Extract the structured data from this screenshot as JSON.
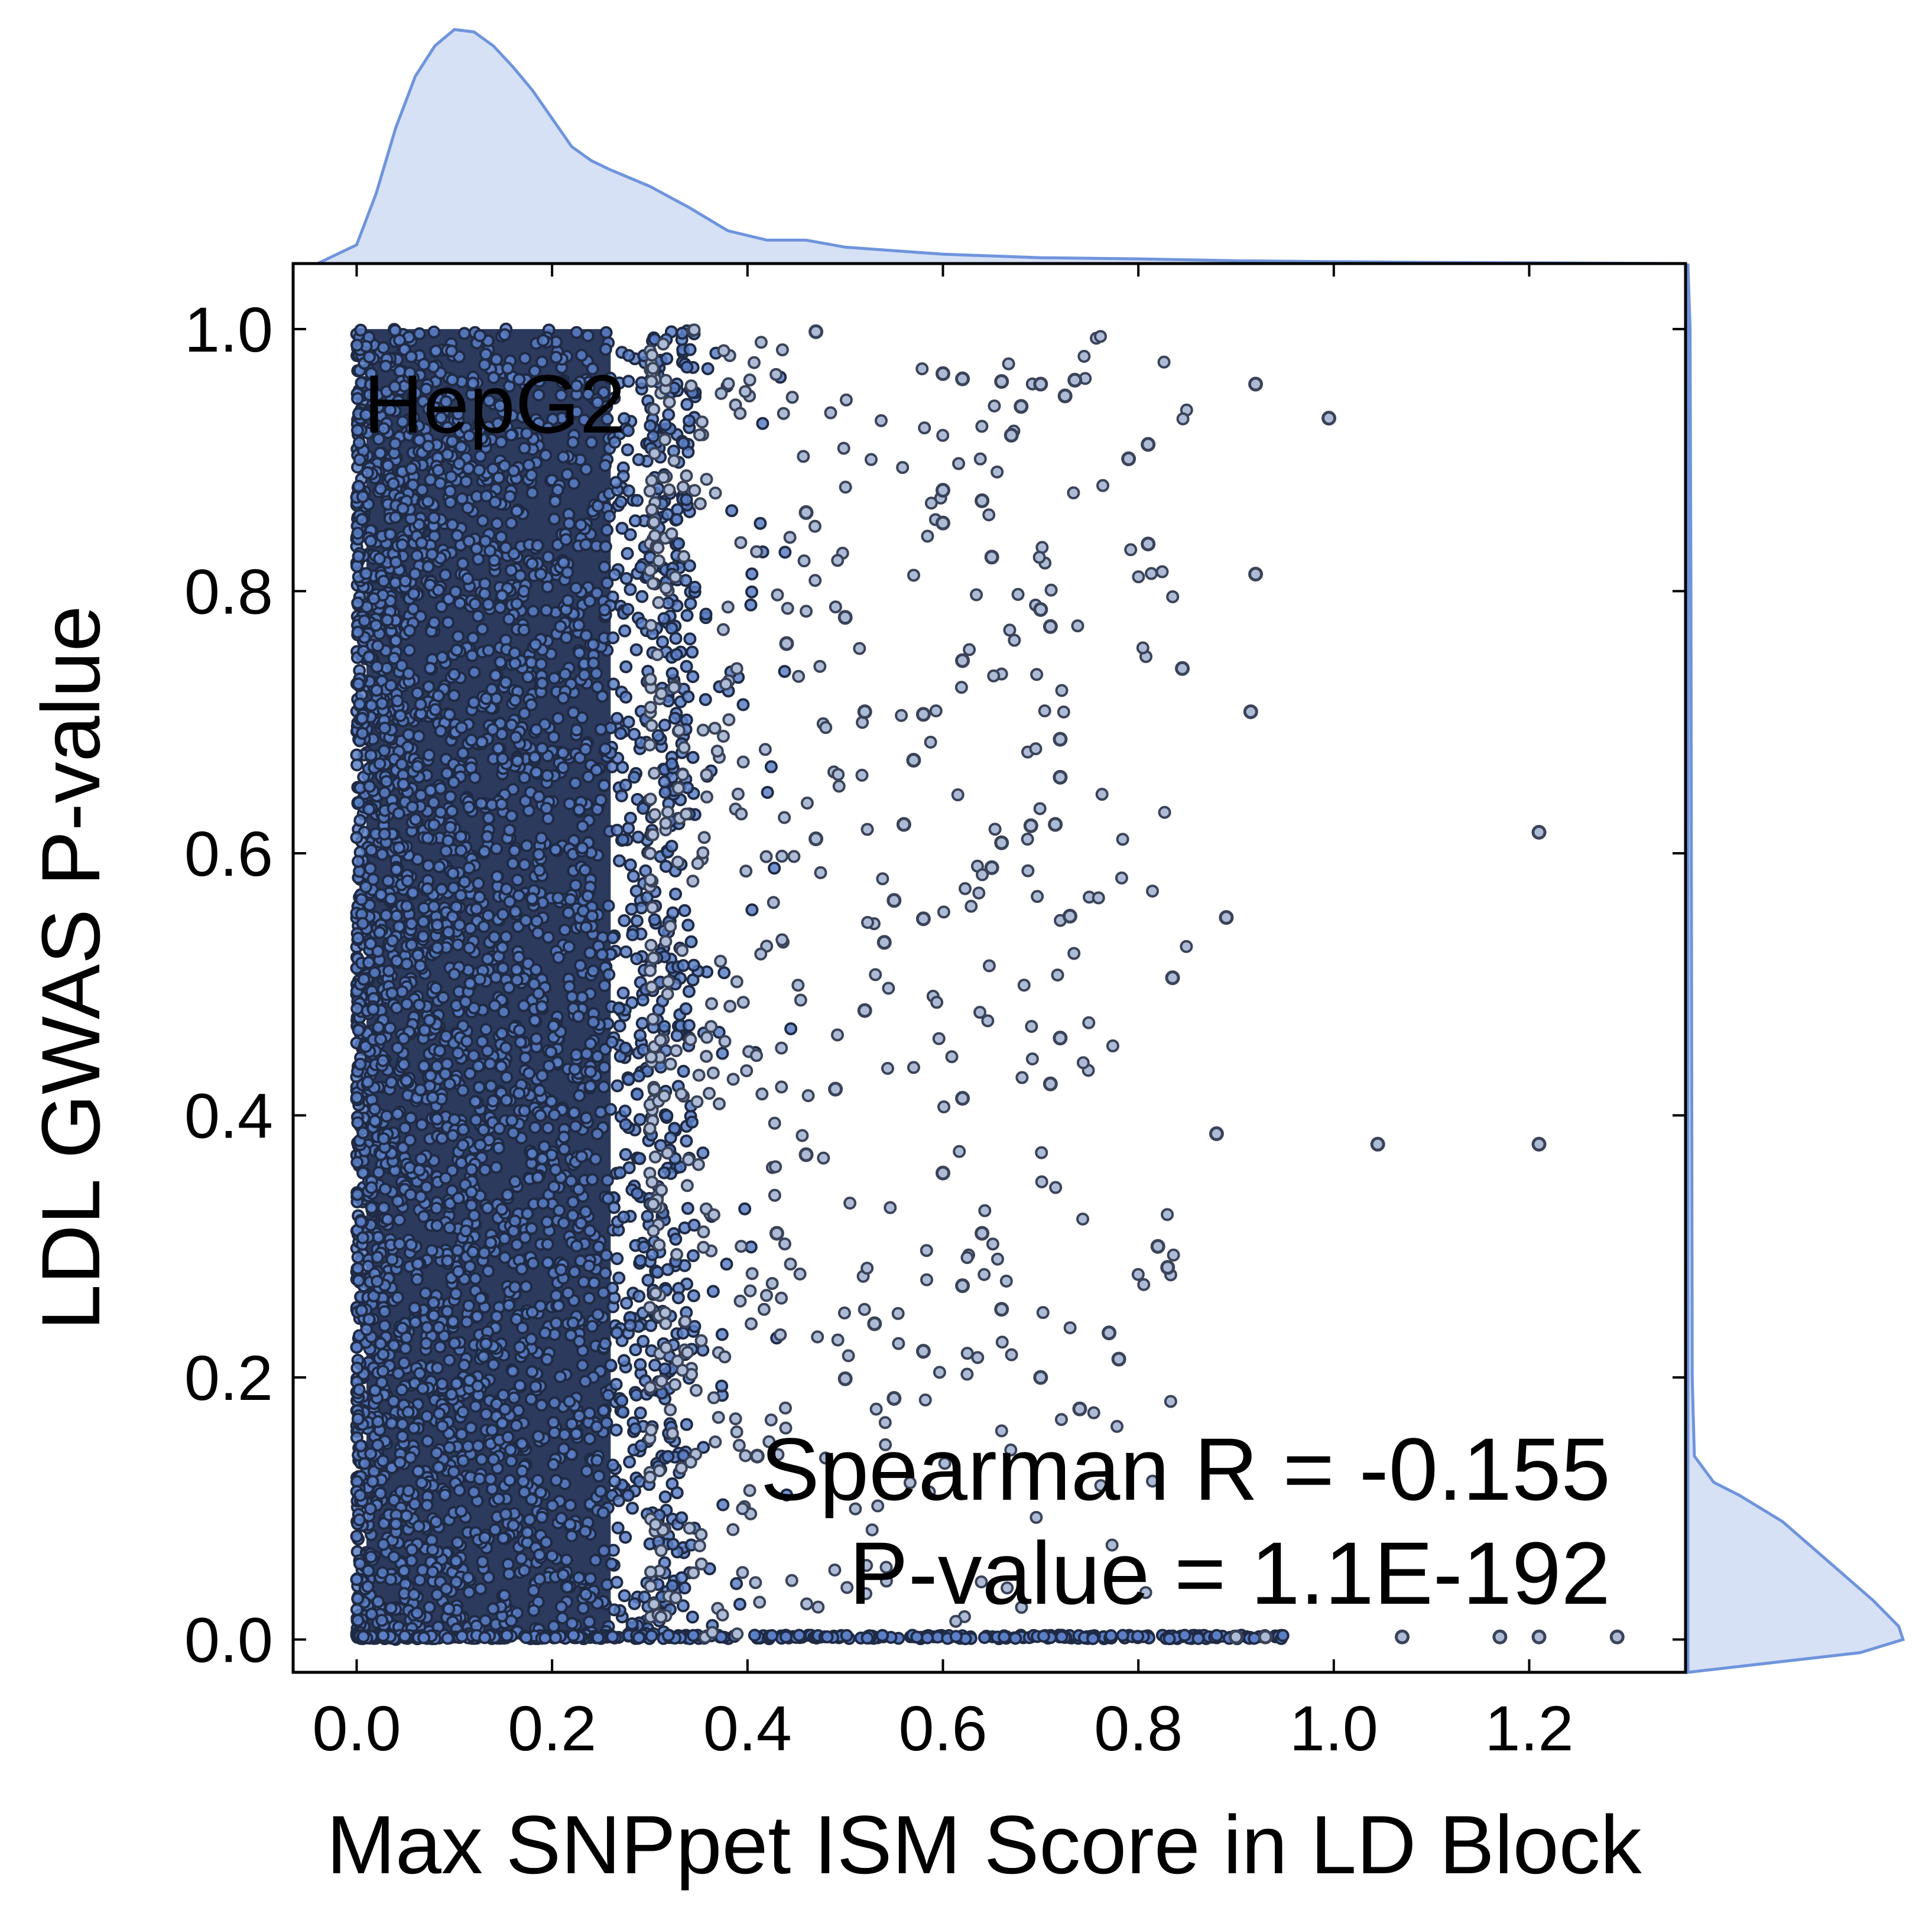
{
  "chart_data": {
    "type": "scatter",
    "xlabel": "Max SNPpet ISM Score in LD Block",
    "ylabel": "LDL GWAS P-value",
    "xlim": [
      -0.065,
      1.36
    ],
    "ylim": [
      -0.025,
      1.05
    ],
    "x_ticks": [
      "0.0",
      "0.2",
      "0.4",
      "0.6",
      "0.8",
      "1.0",
      "1.2"
    ],
    "y_ticks": [
      "0.0",
      "0.2",
      "0.4",
      "0.6",
      "0.8",
      "1.0"
    ],
    "x_tick_values": [
      0,
      0.2,
      0.4,
      0.6,
      0.8,
      1.0,
      1.2
    ],
    "y_tick_values": [
      0,
      0.2,
      0.4,
      0.6,
      0.8,
      1.0
    ],
    "grid": false,
    "annotations": {
      "cell_line": "HepG2",
      "spearman": "Spearman R = -0.155",
      "pvalue": "P-value = 1.1E-192"
    },
    "colors": {
      "marker_fill": "#5b7fc7",
      "marker_edge": "#1f2a44",
      "kde_line": "#6f94dc",
      "kde_fill": "#d6e1f6"
    },
    "series": [
      {
        "points": [
          [
            1.21,
            0.616
          ],
          [
            1.21,
            0.378
          ],
          [
            1.045,
            0.378
          ],
          [
            0.995,
            0.932
          ],
          [
            0.92,
            0.958
          ],
          [
            0.92,
            0.813
          ],
          [
            0.915,
            0.708
          ],
          [
            0.89,
            0.551
          ],
          [
            0.88,
            0.386
          ],
          [
            0.845,
            0.741
          ],
          [
            0.835,
            0.505
          ],
          [
            0.83,
            0.284
          ],
          [
            0.82,
            0.3
          ],
          [
            0.81,
            0.836
          ],
          [
            0.81,
            0.912
          ],
          [
            0.79,
            0.901
          ],
          [
            0.78,
            0.214
          ],
          [
            0.77,
            0.234
          ],
          [
            0.74,
            0.176
          ],
          [
            0.735,
            0.961
          ],
          [
            0.725,
            0.949
          ],
          [
            0.72,
            0.687
          ],
          [
            0.72,
            0.658
          ],
          [
            0.715,
            0.622
          ],
          [
            0.73,
            0.552
          ],
          [
            0.71,
            0.773
          ],
          [
            0.7,
            0.786
          ],
          [
            0.7,
            0.958
          ],
          [
            0.72,
            0.459
          ],
          [
            0.71,
            0.424
          ],
          [
            0.69,
            0.621
          ],
          [
            0.68,
            0.941
          ],
          [
            0.67,
            0.919
          ],
          [
            0.66,
            0.96
          ],
          [
            0.66,
            0.608
          ],
          [
            0.65,
            0.589
          ],
          [
            0.65,
            0.826
          ],
          [
            0.64,
            0.869
          ],
          [
            0.62,
            0.747
          ],
          [
            0.62,
            0.962
          ],
          [
            0.6,
            0.966
          ],
          [
            0.6,
            0.877
          ],
          [
            0.6,
            0.852
          ],
          [
            0.58,
            0.706
          ],
          [
            0.57,
            0.671
          ],
          [
            0.56,
            0.622
          ],
          [
            0.55,
            0.564
          ],
          [
            0.54,
            0.532
          ],
          [
            0.52,
            0.708
          ],
          [
            0.5,
            0.78
          ],
          [
            0.49,
            0.42
          ],
          [
            0.47,
            0.611
          ],
          [
            0.47,
            0.998
          ],
          [
            0.46,
            0.86
          ],
          [
            0.44,
            0.76
          ],
          [
            0.62,
            0.413
          ],
          [
            0.64,
            0.31
          ],
          [
            0.6,
            0.356
          ],
          [
            0.58,
            0.22
          ],
          [
            0.55,
            0.184
          ],
          [
            0.53,
            0.241
          ],
          [
            0.5,
            0.199
          ],
          [
            0.62,
            0.27
          ],
          [
            0.66,
            0.252
          ],
          [
            0.7,
            0.2
          ],
          [
            0.58,
            0.55
          ],
          [
            0.52,
            0.48
          ],
          [
            0.46,
            0.37
          ],
          [
            0.43,
            0.31
          ],
          [
            0.41,
            0.14
          ]
        ]
      }
    ],
    "baseline_band": {
      "y": 0.002,
      "x_range": [
        0.0,
        0.95
      ]
    },
    "outliers_on_baseline": [
      1.07,
      1.17,
      1.21,
      1.29,
      0.93,
      0.9
    ],
    "dense_region": {
      "x_range": [
        0.0,
        0.33
      ],
      "y_range": [
        0.0,
        1.0
      ]
    },
    "marginal_x_kde": {
      "x": [
        -0.04,
        0.0,
        0.02,
        0.04,
        0.06,
        0.08,
        0.1,
        0.12,
        0.14,
        0.16,
        0.18,
        0.2,
        0.22,
        0.24,
        0.26,
        0.3,
        0.34,
        0.38,
        0.42,
        0.46,
        0.5,
        0.6,
        0.7,
        0.8,
        0.9,
        1.0,
        1.1,
        1.2,
        1.36
      ],
      "density": [
        0.0,
        0.08,
        0.3,
        0.58,
        0.8,
        0.93,
        1.0,
        0.99,
        0.93,
        0.84,
        0.74,
        0.62,
        0.5,
        0.44,
        0.4,
        0.33,
        0.24,
        0.14,
        0.1,
        0.1,
        0.07,
        0.04,
        0.025,
        0.02,
        0.012,
        0.008,
        0.005,
        0.003,
        0.0
      ]
    },
    "marginal_y_kde": {
      "y": [
        -0.025,
        -0.01,
        0.0,
        0.01,
        0.03,
        0.05,
        0.07,
        0.09,
        0.1,
        0.11,
        0.12,
        0.14,
        0.2,
        0.4,
        0.6,
        0.8,
        1.0,
        1.05
      ],
      "density": [
        0.0,
        0.8,
        1.0,
        0.98,
        0.86,
        0.72,
        0.58,
        0.44,
        0.34,
        0.24,
        0.12,
        0.03,
        0.02,
        0.018,
        0.016,
        0.014,
        0.01,
        0.0
      ]
    }
  }
}
